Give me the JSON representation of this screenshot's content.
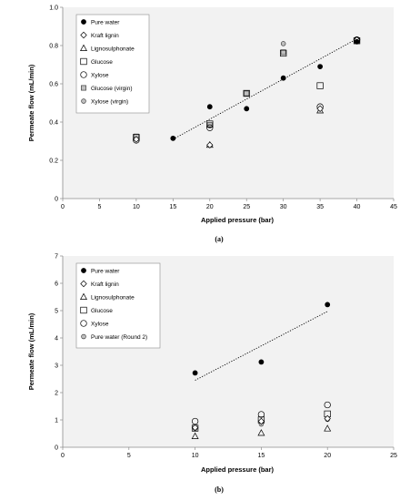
{
  "chart_data": [
    {
      "type": "scatter",
      "panel_label": "(a)",
      "xlabel": "Applied pressure (bar)",
      "ylabel": "Permeate flow (mL/min)",
      "xlim": [
        0,
        45
      ],
      "ylim": [
        0,
        1.0
      ],
      "x_ticks": [
        "0",
        "5",
        "10",
        "15",
        "20",
        "25",
        "30",
        "35",
        "40",
        "45"
      ],
      "y_ticks": [
        "0",
        "0.2",
        "0.4",
        "0.6",
        "0.8",
        "1.0"
      ],
      "grid": false,
      "legend_position": "top-left",
      "plot_background": "#f2f2f2",
      "series": [
        {
          "name": "Pure water",
          "marker": "filled-circle",
          "points": [
            [
              15,
              0.315
            ],
            [
              20,
              0.48
            ],
            [
              25,
              0.47
            ],
            [
              30,
              0.63
            ],
            [
              35,
              0.69
            ],
            [
              40,
              0.82
            ]
          ]
        },
        {
          "name": "Kraft lignin",
          "marker": "diamond",
          "points": [
            [
              10,
              0.31
            ],
            [
              20,
              0.28
            ],
            [
              35,
              0.47
            ],
            [
              40,
              0.83
            ]
          ]
        },
        {
          "name": "Lignosulphonate",
          "marker": "triangle",
          "points": [
            [
              20,
              0.28
            ],
            [
              35,
              0.46
            ]
          ]
        },
        {
          "name": "Glucose",
          "marker": "square",
          "points": [
            [
              10,
              0.32
            ],
            [
              20,
              0.39
            ],
            [
              25,
              0.55
            ],
            [
              30,
              0.76
            ],
            [
              35,
              0.59
            ],
            [
              40,
              0.825
            ]
          ]
        },
        {
          "name": "Xylose",
          "marker": "open-circle",
          "points": [
            [
              10,
              0.305
            ],
            [
              20,
              0.37
            ],
            [
              35,
              0.48
            ],
            [
              40,
              0.83
            ]
          ]
        },
        {
          "name": "Glucose (virgin)",
          "marker": "gray-square",
          "points": [
            [
              10,
              0.325
            ],
            [
              20,
              0.385
            ],
            [
              25,
              0.55
            ],
            [
              30,
              0.765
            ],
            [
              40,
              0.825
            ]
          ]
        },
        {
          "name": "Xylose (virgin)",
          "marker": "gray-circle",
          "points": [
            [
              10,
              0.31
            ],
            [
              20,
              0.38
            ],
            [
              30,
              0.81
            ],
            [
              40,
              0.83
            ]
          ]
        }
      ],
      "trendline": {
        "series": "Pure water",
        "style": "dotted",
        "x": [
          15,
          40
        ],
        "y": [
          0.31,
          0.835
        ]
      }
    },
    {
      "type": "scatter",
      "panel_label": "(b)",
      "xlabel": "Applied pressure (bar)",
      "ylabel": "Permeate flow (mL/min)",
      "xlim": [
        0,
        25
      ],
      "ylim": [
        0,
        7
      ],
      "x_ticks": [
        "0",
        "5",
        "10",
        "15",
        "20",
        "25"
      ],
      "y_ticks": [
        "0",
        "1",
        "2",
        "3",
        "4",
        "5",
        "6",
        "7"
      ],
      "grid": false,
      "legend_position": "top-left",
      "plot_background": "#f2f2f2",
      "series": [
        {
          "name": "Pure water",
          "marker": "filled-circle",
          "points": [
            [
              10,
              2.72
            ],
            [
              15,
              3.12
            ],
            [
              20,
              5.22
            ]
          ]
        },
        {
          "name": "Kraft lignin",
          "marker": "diamond",
          "points": [
            [
              10,
              0.72
            ],
            [
              15,
              0.95
            ],
            [
              20,
              1.05
            ]
          ]
        },
        {
          "name": "Lignosulphonate",
          "marker": "triangle",
          "points": [
            [
              10,
              0.4
            ],
            [
              15,
              0.52
            ],
            [
              20,
              0.68
            ]
          ]
        },
        {
          "name": "Glucose",
          "marker": "square",
          "points": [
            [
              10,
              0.7
            ],
            [
              15,
              1.0
            ],
            [
              20,
              1.22
            ]
          ]
        },
        {
          "name": "Xylose",
          "marker": "open-circle",
          "points": [
            [
              10,
              0.95
            ],
            [
              15,
              1.2
            ],
            [
              20,
              1.55
            ]
          ]
        },
        {
          "name": "Pure water (Round 2)",
          "marker": "gray-circle",
          "points": [
            [
              10,
              0.68
            ],
            [
              15,
              0.85
            ],
            [
              20,
              1.02
            ]
          ]
        }
      ],
      "trendline": {
        "series": "Pure water",
        "style": "dotted",
        "x": [
          10,
          20
        ],
        "y": [
          2.45,
          4.97
        ]
      }
    }
  ]
}
